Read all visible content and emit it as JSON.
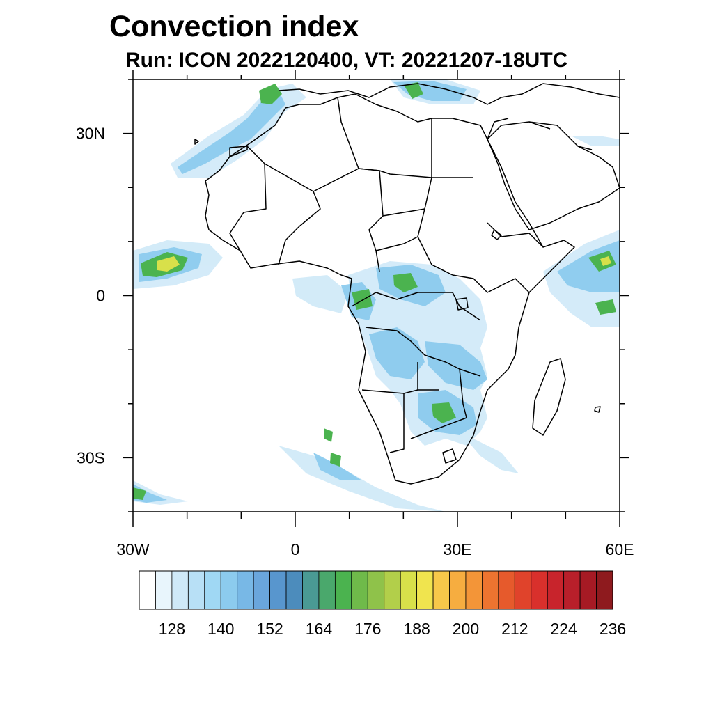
{
  "title": "Convection index",
  "subtitle": "Run: ICON 2022120400,  VT: 20221207-18UTC",
  "map": {
    "lon_range": [
      -30,
      60
    ],
    "lat_range": [
      -40,
      40
    ],
    "lat_ticks": [
      {
        "lat": 30,
        "label": "30N"
      },
      {
        "lat": 0,
        "label": "0"
      },
      {
        "lat": -30,
        "label": "30S"
      }
    ],
    "lon_ticks": [
      {
        "lon": -30,
        "label": "30W"
      },
      {
        "lon": 0,
        "label": "0"
      },
      {
        "lon": 30,
        "label": "30E"
      },
      {
        "lon": 60,
        "label": "60E"
      }
    ],
    "minor_lat": [
      40,
      20,
      10,
      -10,
      -20,
      -40
    ],
    "minor_lon": [
      -20,
      -10,
      10,
      20,
      40,
      50
    ],
    "coast_color": "#000000"
  },
  "colorbar": {
    "colors": [
      "#ffffff",
      "#e8f5fc",
      "#cfe9f8",
      "#b8e0f6",
      "#a0d8f4",
      "#8ccbee",
      "#78b8e6",
      "#6aa6dc",
      "#5896ce",
      "#4c8cbc",
      "#4a9a94",
      "#4aa86c",
      "#4bb34f",
      "#6fba4a",
      "#8fc24a",
      "#b2cf4a",
      "#d8e04a",
      "#f0e44e",
      "#f7c84a",
      "#f6ad40",
      "#f39538",
      "#ed7430",
      "#e65a2c",
      "#e0432b",
      "#d9302c",
      "#c8242c",
      "#b81f2a",
      "#a61a24",
      "#8e1a1e"
    ],
    "labels": [
      "128",
      "140",
      "152",
      "164",
      "176",
      "188",
      "200",
      "212",
      "224",
      "236"
    ]
  }
}
